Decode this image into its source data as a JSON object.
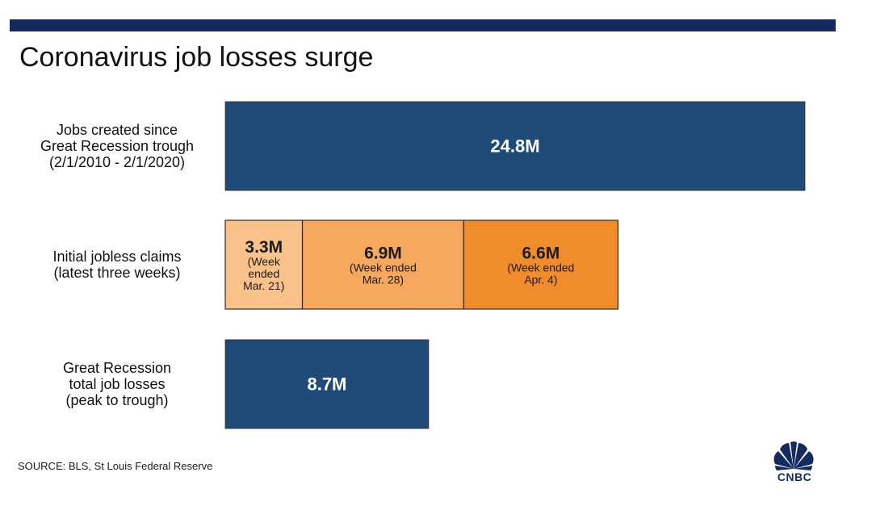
{
  "title": "Coronavirus job losses surge",
  "source": "SOURCE: BLS, St Louis Federal Reserve",
  "logo_text": "CNBC",
  "colors": {
    "navy": "#1f4b78",
    "topbar": "#132b5f",
    "orange_light": "#f8c28a",
    "orange_mid": "#f6a85e",
    "orange_dark": "#f08c2c"
  },
  "chart_data": {
    "type": "bar",
    "orientation": "horizontal",
    "stacked": true,
    "unit": "M",
    "rows": [
      {
        "label_lines": [
          "Jobs created since",
          "Great Recession trough",
          "(2/1/2010 - 2/1/2020)"
        ],
        "segments": [
          {
            "value": 24.8,
            "value_label": "24.8M",
            "sub_lines": [],
            "color": "navy"
          }
        ]
      },
      {
        "label_lines": [
          "Initial jobless claims",
          "(latest three weeks)"
        ],
        "segments": [
          {
            "value": 3.3,
            "value_label": "3.3M",
            "sub_lines": [
              "(Week",
              "ended",
              "Mar. 21)"
            ],
            "color": "orange_light"
          },
          {
            "value": 6.9,
            "value_label": "6.9M",
            "sub_lines": [
              "(Week ended",
              "Mar. 28)"
            ],
            "color": "orange_mid"
          },
          {
            "value": 6.6,
            "value_label": "6.6M",
            "sub_lines": [
              "(Week ended",
              "Apr. 4)"
            ],
            "color": "orange_dark"
          }
        ]
      },
      {
        "label_lines": [
          "Great Recession",
          "total job losses",
          "(peak to trough)"
        ],
        "segments": [
          {
            "value": 8.7,
            "value_label": "8.7M",
            "sub_lines": [],
            "color": "navy"
          }
        ]
      }
    ]
  }
}
